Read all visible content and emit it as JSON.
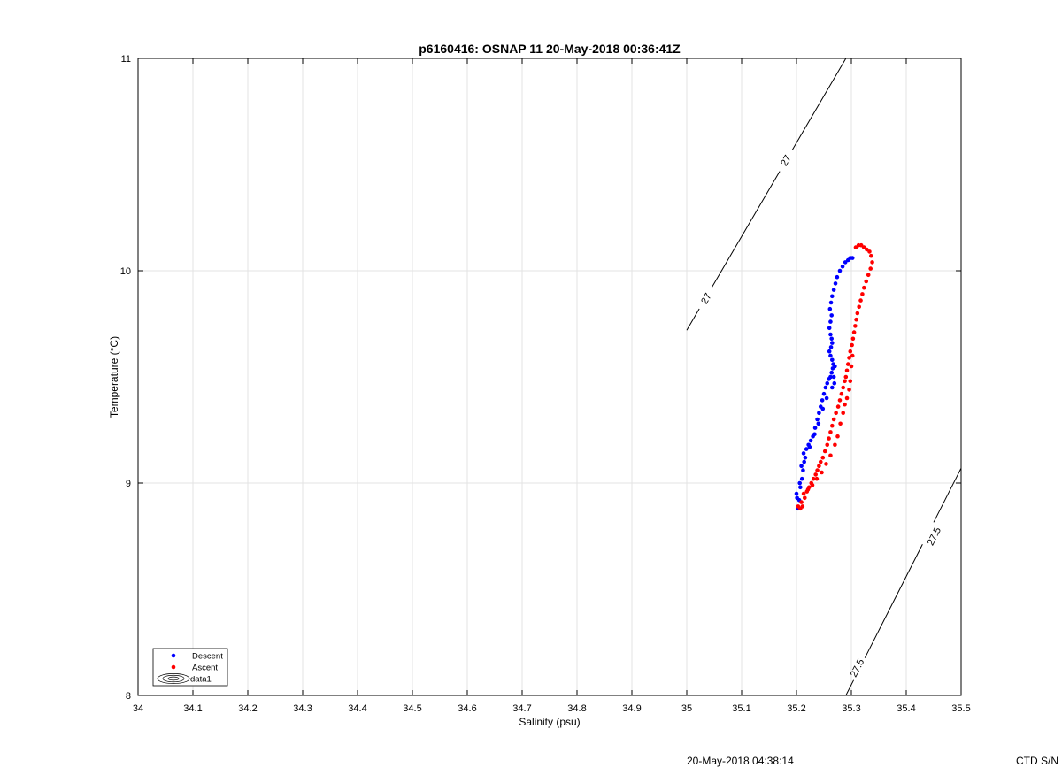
{
  "chart_data": {
    "type": "scatter",
    "title": "p6160416: OSNAP 11 20-May-2018 00:36:41Z",
    "xlabel": "Salinity (psu)",
    "ylabel": "Temperature (°C)",
    "xlim": [
      34,
      35.5
    ],
    "ylim": [
      8,
      11
    ],
    "x_ticks": [
      "34",
      "34.1",
      "34.2",
      "34.3",
      "34.4",
      "34.5",
      "34.6",
      "34.7",
      "34.8",
      "34.9",
      "35",
      "35.1",
      "35.2",
      "35.3",
      "35.4",
      "35.5"
    ],
    "y_ticks": [
      "8",
      "9",
      "10",
      "11"
    ],
    "grid": true,
    "legend_position": "bottom-left",
    "legend": [
      "Descent",
      "Ascent",
      "data1"
    ],
    "series": [
      {
        "name": "Descent",
        "color": "#0000ff",
        "points": [
          [
            35.2,
            8.95
          ],
          [
            35.205,
            8.92
          ],
          [
            35.203,
            8.88
          ],
          [
            35.207,
            8.98
          ],
          [
            35.21,
            9.02
          ],
          [
            35.212,
            9.06
          ],
          [
            35.214,
            9.1
          ],
          [
            35.213,
            9.14
          ],
          [
            35.218,
            9.16
          ],
          [
            35.222,
            9.18
          ],
          [
            35.226,
            9.2
          ],
          [
            35.23,
            9.22
          ],
          [
            35.234,
            9.26
          ],
          [
            35.238,
            9.3
          ],
          [
            35.241,
            9.33
          ],
          [
            35.244,
            9.36
          ],
          [
            35.247,
            9.39
          ],
          [
            35.25,
            9.42
          ],
          [
            35.253,
            9.45
          ],
          [
            35.256,
            9.47
          ],
          [
            35.259,
            9.49
          ],
          [
            35.262,
            9.5
          ],
          [
            35.264,
            9.52
          ],
          [
            35.266,
            9.54
          ],
          [
            35.267,
            9.56
          ],
          [
            35.265,
            9.58
          ],
          [
            35.262,
            9.6
          ],
          [
            35.26,
            9.62
          ],
          [
            35.263,
            9.64
          ],
          [
            35.265,
            9.66
          ],
          [
            35.264,
            9.68
          ],
          [
            35.262,
            9.7
          ],
          [
            35.26,
            9.73
          ],
          [
            35.262,
            9.76
          ],
          [
            35.264,
            9.79
          ],
          [
            35.261,
            9.82
          ],
          [
            35.263,
            9.85
          ],
          [
            35.265,
            9.88
          ],
          [
            35.268,
            9.91
          ],
          [
            35.271,
            9.94
          ],
          [
            35.274,
            9.97
          ],
          [
            35.279,
            10.0
          ],
          [
            35.284,
            10.02
          ],
          [
            35.289,
            10.04
          ],
          [
            35.294,
            10.05
          ],
          [
            35.298,
            10.06
          ],
          [
            35.302,
            10.06
          ],
          [
            35.27,
            9.55
          ],
          [
            35.268,
            9.5
          ],
          [
            35.265,
            9.45
          ],
          [
            35.255,
            9.4
          ],
          [
            35.248,
            9.35
          ],
          [
            35.24,
            9.28
          ],
          [
            35.233,
            9.23
          ],
          [
            35.224,
            9.17
          ],
          [
            35.216,
            9.12
          ],
          [
            35.209,
            9.08
          ],
          [
            35.206,
            9.0
          ],
          [
            35.201,
            8.93
          ],
          [
            35.269,
            9.47
          ]
        ]
      },
      {
        "name": "Ascent",
        "color": "#ff0000",
        "points": [
          [
            35.203,
            8.89
          ],
          [
            35.207,
            8.88
          ],
          [
            35.211,
            8.89
          ],
          [
            35.215,
            8.93
          ],
          [
            35.219,
            8.96
          ],
          [
            35.223,
            8.98
          ],
          [
            35.227,
            9.0
          ],
          [
            35.231,
            9.02
          ],
          [
            35.235,
            9.04
          ],
          [
            35.238,
            9.06
          ],
          [
            35.241,
            9.08
          ],
          [
            35.244,
            9.1
          ],
          [
            35.248,
            9.12
          ],
          [
            35.252,
            9.15
          ],
          [
            35.256,
            9.18
          ],
          [
            35.259,
            9.21
          ],
          [
            35.262,
            9.24
          ],
          [
            35.265,
            9.27
          ],
          [
            35.268,
            9.3
          ],
          [
            35.272,
            9.33
          ],
          [
            35.276,
            9.36
          ],
          [
            35.279,
            9.39
          ],
          [
            35.282,
            9.42
          ],
          [
            35.285,
            9.45
          ],
          [
            35.288,
            9.48
          ],
          [
            35.29,
            9.5
          ],
          [
            35.292,
            9.53
          ],
          [
            35.294,
            9.56
          ],
          [
            35.296,
            9.59
          ],
          [
            35.298,
            9.62
          ],
          [
            35.301,
            9.65
          ],
          [
            35.303,
            9.68
          ],
          [
            35.305,
            9.71
          ],
          [
            35.307,
            9.74
          ],
          [
            35.309,
            9.77
          ],
          [
            35.311,
            9.8
          ],
          [
            35.314,
            9.83
          ],
          [
            35.317,
            9.86
          ],
          [
            35.32,
            9.89
          ],
          [
            35.323,
            9.92
          ],
          [
            35.327,
            9.95
          ],
          [
            35.331,
            9.98
          ],
          [
            35.335,
            10.01
          ],
          [
            35.338,
            10.04
          ],
          [
            35.336,
            10.07
          ],
          [
            35.333,
            10.09
          ],
          [
            35.328,
            10.1
          ],
          [
            35.323,
            10.11
          ],
          [
            35.318,
            10.12
          ],
          [
            35.313,
            10.12
          ],
          [
            35.308,
            10.11
          ],
          [
            35.302,
            9.6
          ],
          [
            35.3,
            9.55
          ],
          [
            35.298,
            9.48
          ],
          [
            35.296,
            9.44
          ],
          [
            35.292,
            9.4
          ],
          [
            35.288,
            9.37
          ],
          [
            35.285,
            9.33
          ],
          [
            35.28,
            9.28
          ],
          [
            35.275,
            9.22
          ],
          [
            35.27,
            9.18
          ],
          [
            35.262,
            9.13
          ],
          [
            35.254,
            9.09
          ],
          [
            35.246,
            9.05
          ],
          [
            35.237,
            9.02
          ],
          [
            35.229,
            8.99
          ],
          [
            35.221,
            8.97
          ],
          [
            35.213,
            8.95
          ],
          [
            35.209,
            8.91
          ]
        ]
      }
    ],
    "isopycnals": [
      {
        "label": "27",
        "points": [
          [
            35.0,
            9.72
          ],
          [
            35.29,
            11.0
          ]
        ],
        "label_positions": [
          [
            35.035,
            9.87
          ],
          [
            35.18,
            10.52
          ]
        ]
      },
      {
        "label": "27.5",
        "points": [
          [
            35.29,
            8.0
          ],
          [
            35.5,
            9.07
          ]
        ],
        "label_positions": [
          [
            35.31,
            8.13
          ],
          [
            35.45,
            8.75
          ]
        ]
      }
    ]
  },
  "footer": {
    "timestamp": "20-May-2018 04:38:14",
    "ctd_label": "CTD S/N"
  }
}
